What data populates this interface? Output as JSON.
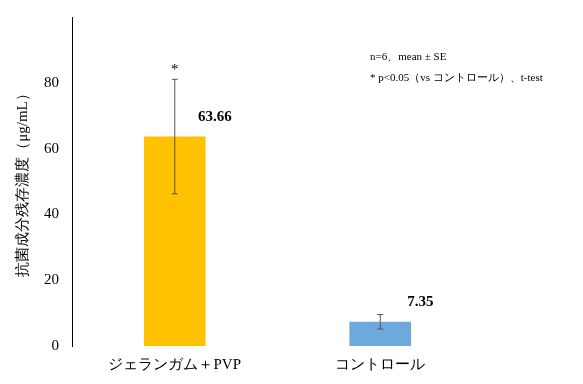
{
  "chart_data": {
    "type": "bar",
    "categories": [
      "ジェランガム＋PVP",
      "コントロール"
    ],
    "values": [
      63.66,
      7.35
    ],
    "errors": [
      17.4,
      2.2
    ],
    "significance": [
      "*",
      null
    ],
    "colors": [
      "#ffc000",
      "#6fa8dc"
    ],
    "y_label": "抗菌成分残存濃度（μg/mL）",
    "annotations": [
      "n=6、mean ± SE",
      "* p<0.05（vs コントロール）、t-test"
    ],
    "ylim": [
      0,
      100
    ],
    "yticks": [
      0,
      20,
      40,
      60,
      80
    ],
    "grid": false,
    "data_labels": true
  }
}
